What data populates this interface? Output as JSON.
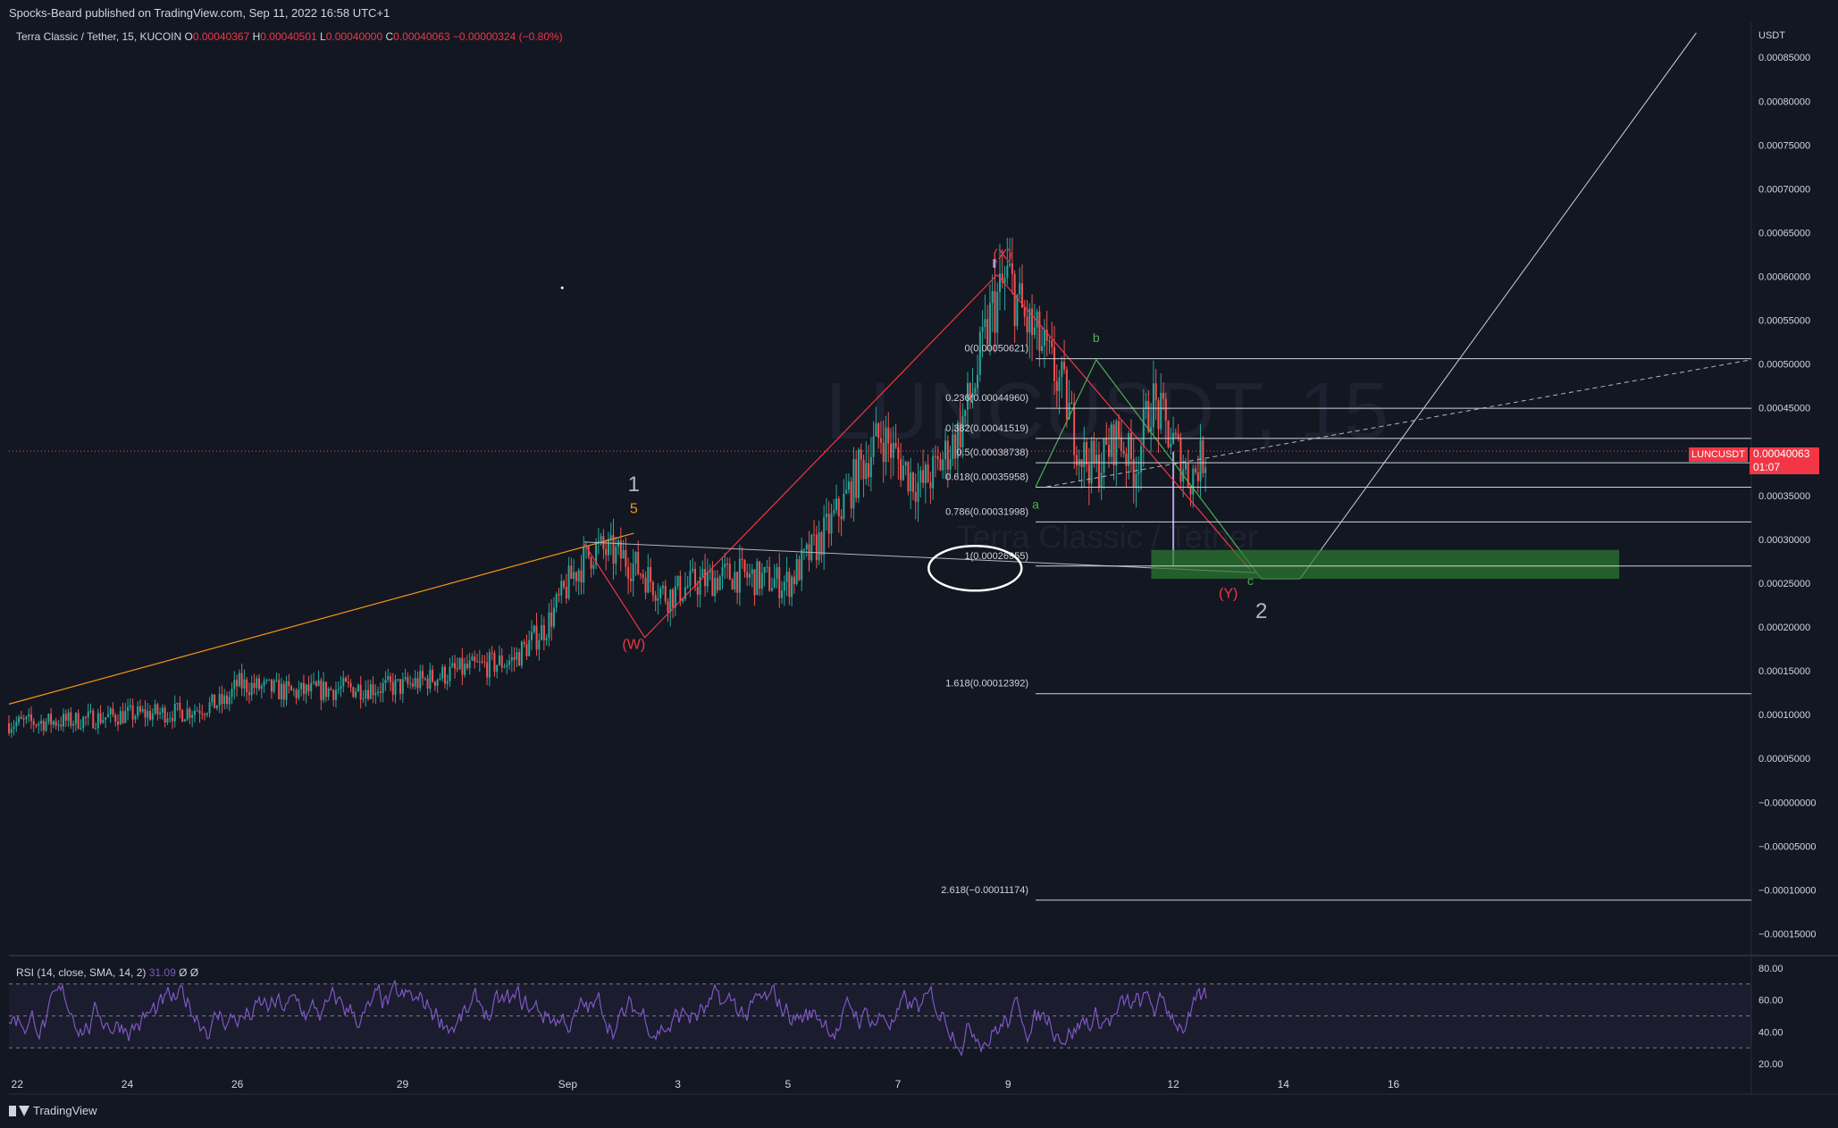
{
  "header": {
    "publisher": "Spocks-Beard published on TradingView.com, Sep 11, 2022 16:58 UTC+1"
  },
  "symbol_bar": {
    "name": "Terra Classic / Tether, 15, KUCOIN",
    "o_label": "O",
    "o_value": "0.00040367",
    "h_label": "H",
    "h_value": "0.00040501",
    "l_label": "L",
    "l_value": "0.00040000",
    "c_label": "C",
    "c_value": "0.00040063",
    "change": "−0.00000324 (−0.80%)"
  },
  "footer": {
    "brand": "TradingView"
  },
  "price_badge": {
    "symbol": "LUNCUSDT",
    "price": "0.00040063",
    "countdown": "01:07"
  },
  "watermark": {
    "ticker": "LUNCUSDT, 15",
    "name": "Terra Classic / Tether"
  },
  "rsi": {
    "label": "RSI (14, close, SMA, 14, 2)",
    "value": "31.09",
    "extra": "Ø Ø",
    "ylim": [
      15,
      85
    ],
    "ticks": [
      "80.00",
      "60.00",
      "40.00",
      "20.00"
    ],
    "tick_values": [
      80,
      60,
      40,
      20
    ],
    "levels": [
      70,
      50,
      30
    ],
    "color": "#7e57c2"
  },
  "colors": {
    "background": "#131722",
    "bull": "#26a69a",
    "bear": "#ef5350",
    "orange": "#f7931a",
    "wave_red": "#f23645",
    "wave_green": "#4caf50",
    "fib": "#d1d4dc",
    "zone": "#2e7d32"
  },
  "chart_data": {
    "type": "candlestick",
    "currency": "USDT",
    "ylim": [
      -0.000175,
      0.00089
    ],
    "y_ticks": [
      "0.00085000",
      "0.00080000",
      "0.00075000",
      "0.00070000",
      "0.00065000",
      "0.00060000",
      "0.00055000",
      "0.00050000",
      "0.00045000",
      "0.00040000",
      "0.00035000",
      "0.00030000",
      "0.00025000",
      "0.00020000",
      "0.00015000",
      "0.00010000",
      "0.00005000",
      "−0.00000000",
      "−0.00005000",
      "−0.00010000",
      "−0.00015000"
    ],
    "y_tick_values": [
      0.00085,
      0.0008,
      0.00075,
      0.0007,
      0.00065,
      0.0006,
      0.00055,
      0.0005,
      0.00045,
      0.0004,
      0.00035,
      0.0003,
      0.00025,
      0.0002,
      0.00015,
      0.0001,
      5e-05,
      0,
      -5e-05,
      -0.0001,
      -0.00015
    ],
    "x_ticks": [
      "22",
      "24",
      "26",
      "29",
      "Sep",
      "3",
      "5",
      "7",
      "9",
      "12",
      "14",
      "16"
    ],
    "x_tick_days": [
      22,
      24,
      26,
      29,
      32,
      34,
      36,
      38,
      40,
      43,
      45,
      47
    ],
    "x_range_days": [
      21.85,
      53.5
    ],
    "last_price": 0.00040063,
    "price_path": [
      [
        21.85,
        9e-05
      ],
      [
        23,
        9.3e-05
      ],
      [
        24,
        0.0001
      ],
      [
        25,
        0.000103
      ],
      [
        25.8,
        0.000115
      ],
      [
        26,
        0.000135
      ],
      [
        27,
        0.000125
      ],
      [
        28,
        0.00013
      ],
      [
        29,
        0.000132
      ],
      [
        30,
        0.00015
      ],
      [
        31,
        0.000162
      ],
      [
        31.6,
        0.0002
      ],
      [
        32.1,
        0.00026
      ],
      [
        32.5,
        0.00029
      ],
      [
        33,
        0.00028
      ],
      [
        33.4,
        0.00026
      ],
      [
        33.8,
        0.000235
      ],
      [
        34.3,
        0.00025
      ],
      [
        35,
        0.00026
      ],
      [
        36,
        0.00025
      ],
      [
        36.6,
        0.0003
      ],
      [
        37,
        0.00034
      ],
      [
        37.3,
        0.00038
      ],
      [
        37.7,
        0.00042
      ],
      [
        38,
        0.00039
      ],
      [
        38.4,
        0.00036
      ],
      [
        38.7,
        0.00038
      ],
      [
        39.1,
        0.00042
      ],
      [
        39.4,
        0.00048
      ],
      [
        39.7,
        0.00056
      ],
      [
        40,
        0.0006
      ],
      [
        40.3,
        0.00055
      ],
      [
        40.6,
        0.00052
      ],
      [
        41,
        0.00047
      ],
      [
        41.3,
        0.0004
      ],
      [
        41.6,
        0.00038
      ],
      [
        42,
        0.00042
      ],
      [
        42.3,
        0.00038
      ],
      [
        42.6,
        0.00046
      ],
      [
        43,
        0.00041
      ],
      [
        43.3,
        0.00037
      ],
      [
        43.6,
        0.0004
      ]
    ],
    "fib_levels": [
      {
        "label": "0(0.00050621)",
        "value": 0.00050621
      },
      {
        "label": "0.236(0.00044960)",
        "value": 0.0004496
      },
      {
        "label": "0.382(0.00041519)",
        "value": 0.00041519
      },
      {
        "label": "0.5(0.00038738)",
        "value": 0.00038738
      },
      {
        "label": "0.618(0.00035958)",
        "value": 0.00035958
      },
      {
        "label": "0.786(0.00031998)",
        "value": 0.00031998
      },
      {
        "label": "1(0.00026955)",
        "value": 0.00026955
      },
      {
        "label": "1.618(0.00012392)",
        "value": 0.00012392
      },
      {
        "label": "2.618(−0.00011174)",
        "value": -0.00011174
      }
    ],
    "fib_x_days": [
      40.5,
      53.5
    ],
    "wave_labels": [
      {
        "text": "1",
        "day": 33.2,
        "price": 0.000355,
        "color": "#b2b5be",
        "size": 24
      },
      {
        "text": "5",
        "day": 33.2,
        "price": 0.00033,
        "color": "#f7931a",
        "size": 16
      },
      {
        "text": "(W)",
        "day": 33.2,
        "price": 0.000175,
        "color": "#f23645",
        "size": 16
      },
      {
        "text": "(X)",
        "day": 39.9,
        "price": 0.00062,
        "color": "#f23645",
        "size": 16
      },
      {
        "text": "a",
        "day": 40.5,
        "price": 0.000335,
        "color": "#4caf50",
        "size": 14
      },
      {
        "text": "b",
        "day": 41.6,
        "price": 0.000525,
        "color": "#4caf50",
        "size": 14
      },
      {
        "text": "c",
        "day": 44.4,
        "price": 0.000248,
        "color": "#4caf50",
        "size": 14
      },
      {
        "text": "(Y)",
        "day": 44.0,
        "price": 0.000233,
        "color": "#f23645",
        "size": 16
      },
      {
        "text": "2",
        "day": 44.6,
        "price": 0.00021,
        "color": "#b2b5be",
        "size": 24
      }
    ]
  }
}
